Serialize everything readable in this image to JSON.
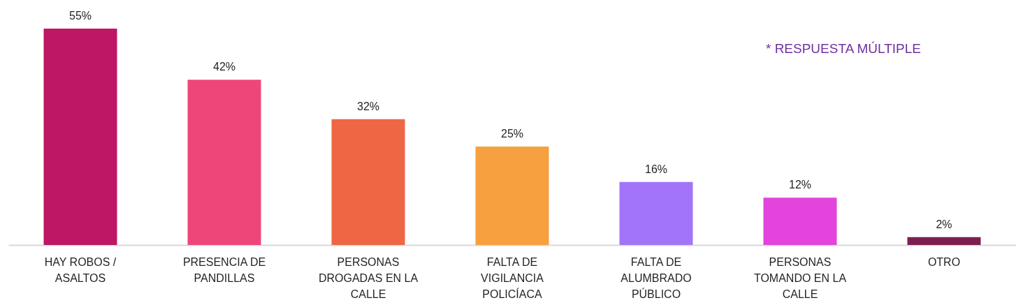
{
  "chart_data": {
    "type": "bar",
    "categories": [
      "HAY ROBOS / ASALTOS",
      "PRESENCIA DE PANDILLAS",
      "PERSONAS DROGADAS EN LA CALLE",
      "FALTA DE VIGILANCIA POLICÍACA",
      "FALTA DE ALUMBRADO PÚBLICO",
      "PERSONAS TOMANDO EN LA CALLE",
      "OTRO"
    ],
    "values": [
      55,
      42,
      32,
      25,
      16,
      12,
      2
    ],
    "colors": [
      "#be1766",
      "#ef4679",
      "#ef6644",
      "#f6a040",
      "#a274f8",
      "#e244dc",
      "#7e1f52"
    ],
    "value_labels": [
      "55%",
      "42%",
      "32%",
      "25%",
      "16%",
      "12%",
      "2%"
    ],
    "annotations": [
      "* RESPUESTA MÚLTIPLE"
    ]
  }
}
